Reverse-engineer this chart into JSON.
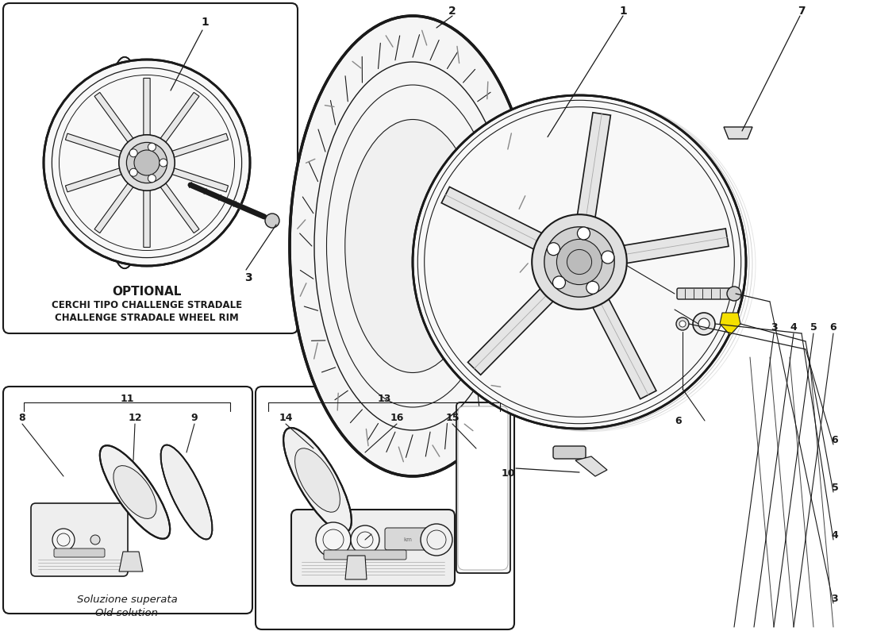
{
  "bg": "#ffffff",
  "lc": "#1a1a1a",
  "wm_color": "#c8b96e",
  "wm_alpha": 0.3,
  "fig_w": 11.0,
  "fig_h": 8.0,
  "dpi": 100,
  "xlim": [
    0,
    1100
  ],
  "ylim": [
    0,
    800
  ]
}
